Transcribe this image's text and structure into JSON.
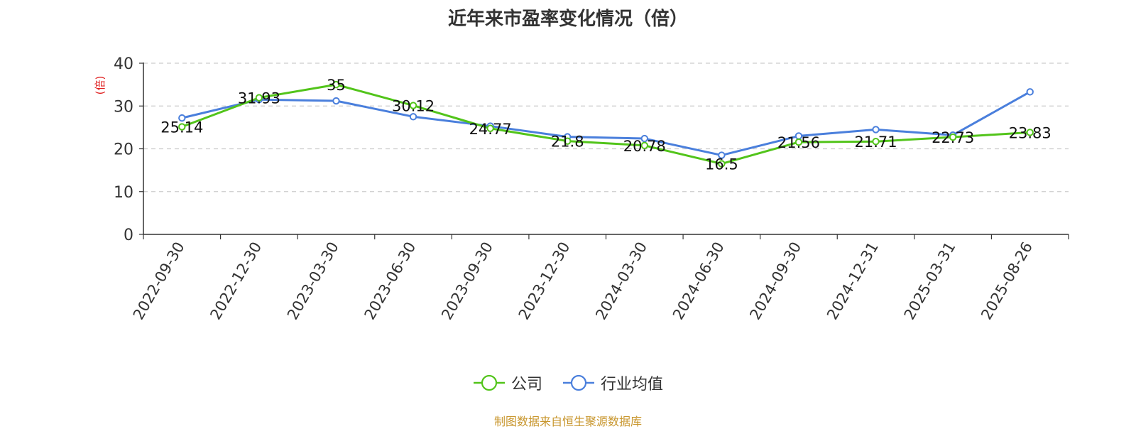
{
  "chart_data": {
    "type": "line",
    "title": "近年来市盈率变化情况（倍）",
    "ylabel": "(倍)",
    "ylim": [
      0,
      40
    ],
    "yticks": [
      0,
      10,
      20,
      30,
      40
    ],
    "grid": true,
    "legend_placement": "bottom-center",
    "categories": [
      "2022-09-30",
      "2022-12-30",
      "2023-03-30",
      "2023-06-30",
      "2023-09-30",
      "2023-12-30",
      "2024-03-30",
      "2024-06-30",
      "2024-09-30",
      "2024-12-31",
      "2025-03-31",
      "2025-08-26"
    ],
    "series": [
      {
        "name": "公司",
        "color": "#52c41a",
        "values": [
          25.14,
          31.93,
          35,
          30.12,
          24.77,
          21.8,
          20.78,
          16.5,
          21.56,
          21.71,
          22.73,
          23.83
        ],
        "labels": [
          "25.14",
          "31.93",
          "35",
          "30.12",
          "24.77",
          "21.8",
          "20.78",
          "16.5",
          "21.56",
          "21.71",
          "22.73",
          "23.83"
        ]
      },
      {
        "name": "行业均值",
        "color": "#4a7fdc",
        "values": [
          27.2,
          31.5,
          31.2,
          27.5,
          25.3,
          22.8,
          22.4,
          18.5,
          23.0,
          24.5,
          23.2,
          33.3
        ]
      }
    ]
  },
  "source": {
    "text": "制图数据来自恒生聚源数据库",
    "color": "#c8962d"
  },
  "colors": {
    "ylabel": "#e02020",
    "axis": "#333333",
    "grid": "#cccccc"
  }
}
